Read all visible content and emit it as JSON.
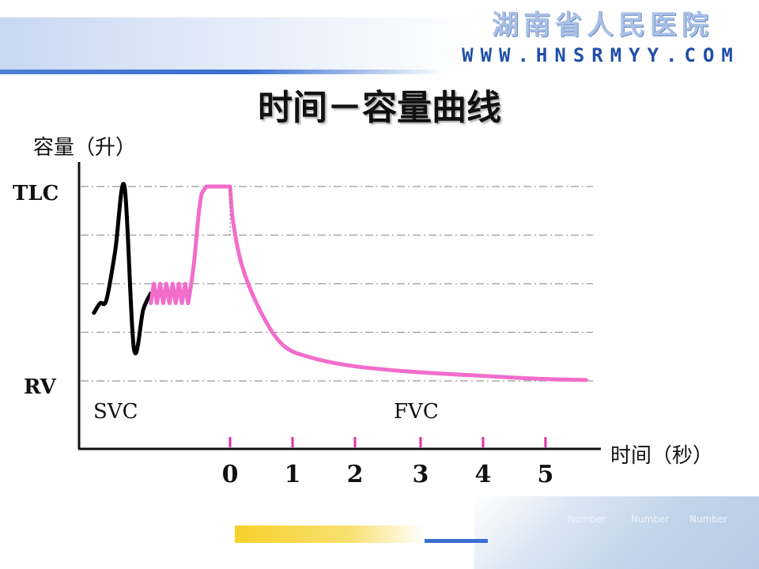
{
  "header": {
    "brand_name": "湖南省人民医院",
    "brand_url": "WWW.HNSRMYY.COM"
  },
  "footer": {
    "numbers": [
      "Number",
      "Number",
      "Number"
    ]
  },
  "colors": {
    "svc_curve": "#000000",
    "pink_curve": "#f26dcb",
    "grid": "#999999",
    "tick": "#e02fa8"
  },
  "chart_data": {
    "type": "line",
    "title": "时间－容量曲线",
    "ylabel": "容量（升）",
    "xlabel": "时间（秒）",
    "y_levels": [
      "TLC",
      "RV"
    ],
    "x_ticks": [
      0,
      1,
      2,
      3,
      4,
      5
    ],
    "xlim": [
      -2.55,
      5.75
    ],
    "ylim": [
      0,
      6
    ],
    "grid": "dash-dot horizontal",
    "annotations": [
      "SVC",
      "FVC"
    ],
    "series": [
      {
        "name": "SVC",
        "x": [
          -2.18,
          -2.08,
          -1.98,
          -1.84,
          -1.69,
          -1.54,
          -1.39,
          -1.27
        ],
        "y": [
          2.1,
          2.4,
          2.5,
          4.0,
          6.0,
          1.0,
          2.2,
          2.7
        ]
      },
      {
        "name": "tidal-breathing",
        "x": [
          -1.27,
          -1.22,
          -1.17,
          -1.12,
          -1.07,
          -1.02,
          -0.97,
          -0.92,
          -0.87,
          -0.82,
          -0.77,
          -0.72,
          -0.67
        ],
        "y": [
          2.4,
          3.0,
          2.4,
          3.0,
          2.4,
          3.0,
          2.4,
          3.0,
          2.4,
          3.0,
          2.4,
          3.0,
          2.4
        ]
      },
      {
        "name": "max-inspiration",
        "x": [
          -0.67,
          -0.58,
          -0.5,
          -0.45,
          -0.38,
          0.0
        ],
        "y": [
          2.4,
          3.6,
          5.2,
          5.8,
          6.0,
          6.0
        ]
      },
      {
        "name": "FVC",
        "x": [
          0.0,
          0.05,
          0.2,
          0.5,
          0.85,
          1.3,
          2.0,
          3.0,
          4.0,
          5.0,
          5.7
        ],
        "y": [
          6.0,
          4.9,
          3.5,
          2.1,
          1.1,
          0.72,
          0.45,
          0.27,
          0.16,
          0.06,
          0.03
        ]
      }
    ]
  }
}
